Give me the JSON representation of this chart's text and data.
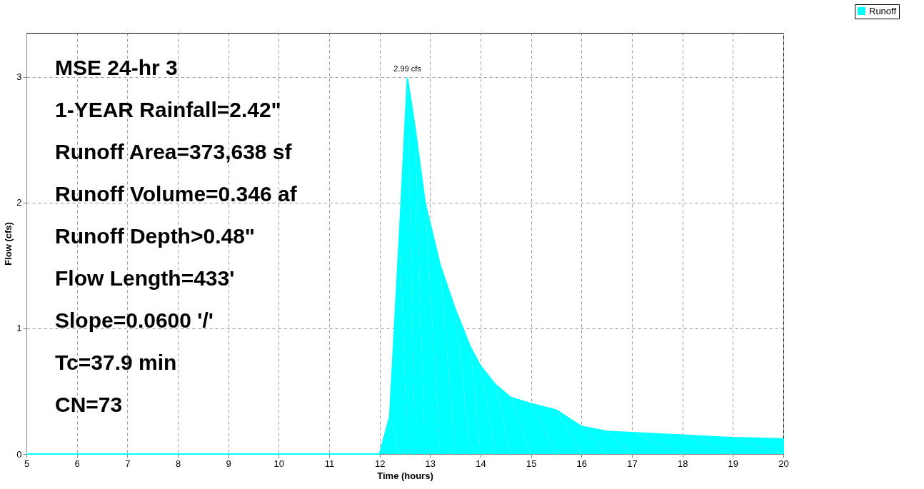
{
  "chart_data": {
    "type": "area",
    "xlabel": "Time  (hours)",
    "ylabel": "Flow  (cfs)",
    "x": [
      5,
      12.0,
      12.2,
      12.4,
      12.55,
      12.7,
      12.9,
      13.2,
      13.5,
      13.8,
      14.0,
      14.3,
      14.6,
      15.0,
      15.5,
      16.0,
      16.5,
      17.0,
      18.0,
      19.0,
      20.0
    ],
    "series": [
      {
        "name": "Runoff",
        "color": "#00ffff",
        "values": [
          0,
          0,
          0.3,
          1.8,
          2.99,
          2.6,
          2.0,
          1.5,
          1.15,
          0.85,
          0.7,
          0.55,
          0.45,
          0.4,
          0.35,
          0.22,
          0.18,
          0.17,
          0.15,
          0.13,
          0.12
        ]
      }
    ],
    "xlim": [
      5,
      20
    ],
    "ylim": [
      0,
      3.35
    ],
    "xticks": [
      5,
      6,
      7,
      8,
      9,
      10,
      11,
      12,
      13,
      14,
      15,
      16,
      17,
      18,
      19,
      20
    ],
    "yticks": [
      0,
      1,
      2,
      3
    ],
    "grid": true,
    "legend": "top right",
    "annotations": [
      {
        "text": "2.99 cfs",
        "x": 12.55,
        "y": 2.99
      },
      "MSE 24-hr 3",
      "1-YEAR Rainfall=2.42\"",
      "Runoff Area=373,638 sf",
      "Runoff Volume=0.346 af",
      "Runoff Depth>0.48\"",
      "Flow Length=433'",
      "Slope=0.0600 '/'",
      "Tc=37.9 min",
      "CN=73"
    ]
  }
}
